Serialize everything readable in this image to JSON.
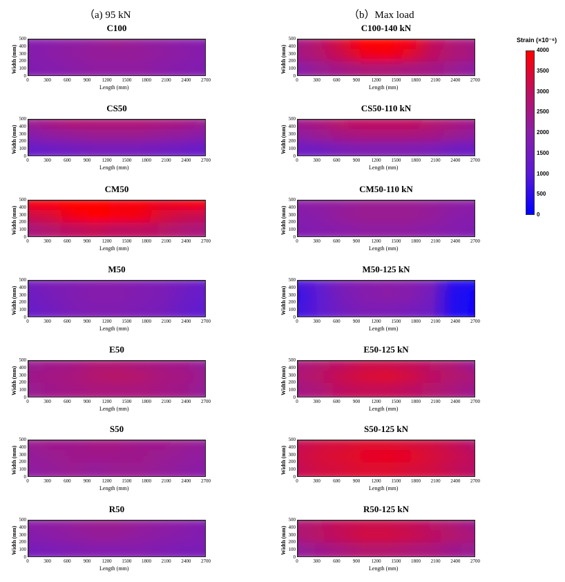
{
  "headings": {
    "left": "（a) 95 kN",
    "right": "（b）Max load"
  },
  "colorbar": {
    "title": "Strain (×10⁻⁶)",
    "ticks": [
      "4000",
      "3500",
      "3000",
      "2500",
      "2000",
      "1500",
      "1000",
      "500",
      "0"
    ],
    "colors": [
      "#0000ff",
      "#5a1ad6",
      "#8a1fa8",
      "#bd1060",
      "#ff0000"
    ]
  },
  "axes": {
    "xlabel": "Length (mm)",
    "ylabel": "Width (mm)",
    "xticks": [
      "0",
      "300",
      "600",
      "900",
      "1200",
      "1500",
      "1800",
      "2100",
      "2400",
      "2700"
    ],
    "yticks": [
      "500",
      "400",
      "300",
      "200",
      "100",
      "0"
    ]
  },
  "chart_data": {
    "type": "heatmap",
    "x_range": [
      0,
      2700
    ],
    "y_range": [
      0,
      500
    ],
    "value_range": [
      0,
      4000
    ],
    "panels": [
      {
        "title": "C100",
        "col": "left",
        "row": 0,
        "strain": [
          [
            1900,
            2000,
            2100,
            2200,
            2300,
            2200,
            2100,
            2000,
            1900
          ],
          [
            1900,
            2000,
            2100,
            2200,
            2200,
            2200,
            2100,
            2000,
            1900
          ],
          [
            1800,
            1900,
            2000,
            2100,
            2100,
            2100,
            2000,
            1900,
            1800
          ]
        ]
      },
      {
        "title": "C100-140 kN",
        "col": "right",
        "row": 0,
        "strain": [
          [
            2500,
            2900,
            3400,
            4100,
            4200,
            3800,
            3100,
            2700,
            2500
          ],
          [
            2500,
            2800,
            3200,
            3700,
            3800,
            3500,
            3000,
            2700,
            2500
          ],
          [
            2000,
            2300,
            2500,
            2700,
            2700,
            2600,
            2500,
            2300,
            2100
          ]
        ]
      },
      {
        "title": "CS50",
        "col": "left",
        "row": 1,
        "strain": [
          [
            2300,
            2500,
            2700,
            2700,
            2700,
            2700,
            2600,
            2500,
            2300
          ],
          [
            1900,
            2100,
            2200,
            2300,
            2300,
            2300,
            2200,
            2100,
            1900
          ],
          [
            1300,
            1400,
            1500,
            1600,
            1600,
            1600,
            1500,
            1400,
            1300
          ]
        ]
      },
      {
        "title": "CS50-110 kN",
        "col": "right",
        "row": 1,
        "strain": [
          [
            2400,
            2600,
            2900,
            3000,
            3000,
            3000,
            2800,
            2600,
            2400
          ],
          [
            2100,
            2300,
            2500,
            2600,
            2600,
            2600,
            2500,
            2300,
            2100
          ],
          [
            1400,
            1500,
            1700,
            1800,
            1800,
            1800,
            1700,
            1500,
            1400
          ]
        ]
      },
      {
        "title": "CM50",
        "col": "left",
        "row": 2,
        "strain": [
          [
            3800,
            3900,
            4000,
            4000,
            3900,
            3900,
            3700,
            3800,
            3900
          ],
          [
            3200,
            3400,
            3800,
            4000,
            3900,
            3800,
            3400,
            3200,
            3100
          ],
          [
            2600,
            2800,
            3000,
            3100,
            3000,
            3000,
            2900,
            2700,
            2600
          ]
        ]
      },
      {
        "title": "CM50-110 kN",
        "col": "right",
        "row": 2,
        "strain": [
          [
            2000,
            2100,
            2200,
            2300,
            2300,
            2300,
            2200,
            2100,
            2000
          ],
          [
            1900,
            2000,
            2200,
            2300,
            2300,
            2300,
            2200,
            2000,
            1900
          ],
          [
            1800,
            1900,
            2000,
            2100,
            2100,
            2100,
            2000,
            1900,
            1800
          ]
        ]
      },
      {
        "title": "M50",
        "col": "left",
        "row": 3,
        "strain": [
          [
            1500,
            1700,
            1800,
            1900,
            1900,
            1800,
            1700,
            1500,
            1300
          ],
          [
            1400,
            1600,
            1800,
            1900,
            1900,
            1800,
            1700,
            1400,
            1200
          ],
          [
            1300,
            1500,
            1700,
            1800,
            1800,
            1700,
            1600,
            1300,
            1100
          ]
        ]
      },
      {
        "title": "M50-125 kN",
        "col": "right",
        "row": 3,
        "strain": [
          [
            800,
            1200,
            1700,
            1900,
            2000,
            1900,
            1600,
            500,
            300
          ],
          [
            600,
            1100,
            1600,
            1900,
            2000,
            1900,
            1500,
            400,
            200
          ],
          [
            700,
            1100,
            1500,
            1700,
            1700,
            1600,
            1400,
            400,
            200
          ]
        ]
      },
      {
        "title": "E50",
        "col": "left",
        "row": 4,
        "strain": [
          [
            2300,
            2400,
            2500,
            2700,
            2700,
            2600,
            2500,
            2400,
            2200
          ],
          [
            2400,
            2500,
            2600,
            2800,
            2900,
            2800,
            2600,
            2500,
            2300
          ],
          [
            2300,
            2400,
            2500,
            2600,
            2600,
            2600,
            2500,
            2400,
            2200
          ]
        ]
      },
      {
        "title": "E50-125 kN",
        "col": "right",
        "row": 4,
        "strain": [
          [
            2600,
            2800,
            3000,
            3200,
            3200,
            3100,
            2900,
            2700,
            2300
          ],
          [
            2700,
            2900,
            3200,
            3400,
            3500,
            3300,
            3000,
            2800,
            2600
          ],
          [
            2500,
            2700,
            3000,
            3100,
            3100,
            3000,
            2800,
            2600,
            2400
          ]
        ]
      },
      {
        "title": "S50",
        "col": "left",
        "row": 5,
        "strain": [
          [
            2300,
            2400,
            2400,
            2500,
            2500,
            2400,
            2400,
            2300,
            2200
          ],
          [
            2200,
            2300,
            2400,
            2400,
            2400,
            2400,
            2300,
            2200,
            2100
          ],
          [
            2100,
            2200,
            2300,
            2200,
            2300,
            2300,
            2200,
            2100,
            2000
          ]
        ]
      },
      {
        "title": "S50-125 kN",
        "col": "right",
        "row": 5,
        "strain": [
          [
            3100,
            3300,
            3400,
            3500,
            3500,
            3400,
            3300,
            3100,
            2800
          ],
          [
            3200,
            3400,
            3500,
            3600,
            3700,
            3600,
            3400,
            3200,
            3000
          ],
          [
            3100,
            3300,
            3400,
            3500,
            3500,
            3400,
            3300,
            3100,
            2900
          ]
        ]
      },
      {
        "title": "R50",
        "col": "left",
        "row": 6,
        "strain": [
          [
            2000,
            2100,
            2200,
            2300,
            2300,
            2200,
            2100,
            2000,
            1800
          ],
          [
            1900,
            2000,
            2100,
            2200,
            2200,
            2100,
            2000,
            1900,
            1800
          ],
          [
            1600,
            1700,
            1800,
            1900,
            1900,
            1900,
            1800,
            1700,
            1700
          ]
        ]
      },
      {
        "title": "R50-125 kN",
        "col": "right",
        "row": 6,
        "strain": [
          [
            2700,
            2900,
            3100,
            3200,
            3200,
            3100,
            2900,
            2700,
            2400
          ],
          [
            2700,
            2900,
            3100,
            3300,
            3300,
            3200,
            3000,
            2800,
            2600
          ],
          [
            2200,
            2400,
            2600,
            2800,
            2800,
            2700,
            2600,
            2400,
            2300
          ]
        ]
      }
    ]
  }
}
